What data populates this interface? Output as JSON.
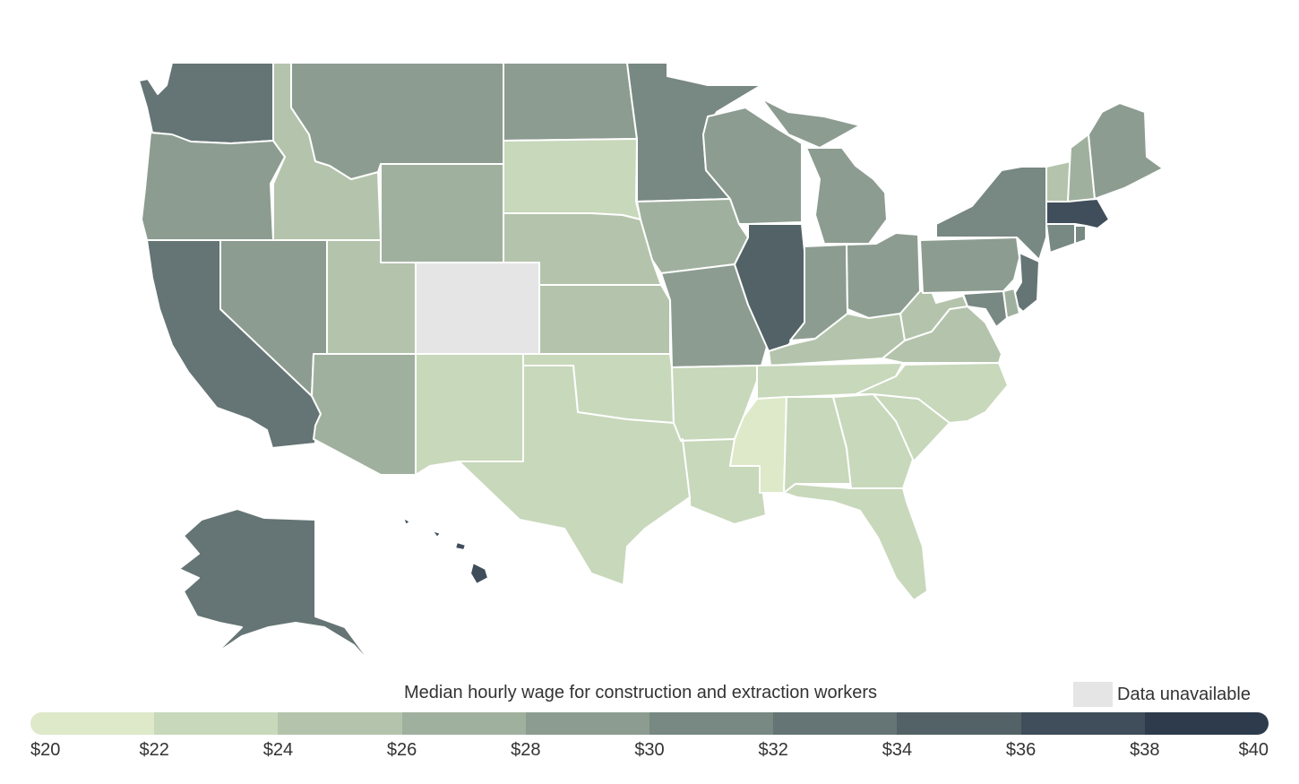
{
  "legend": {
    "title": "Median hourly wage for construction and extraction workers",
    "na_label": "Data unavailable",
    "na_color": "#e5e5e5",
    "colors": [
      "#dde9c8",
      "#c8d8bb",
      "#b4c4ac",
      "#a0b09e",
      "#8c9c90",
      "#788882",
      "#657474",
      "#536266",
      "#3f4e5a",
      "#2d3b4c"
    ],
    "ticks": [
      "$20",
      "$22",
      "$24",
      "$26",
      "$28",
      "$30",
      "$32",
      "$34",
      "$36",
      "$38",
      "$40"
    ]
  },
  "chart_data": {
    "type": "choropleth",
    "legend_placement": "bottom",
    "scale": {
      "min": 20,
      "max": 40,
      "step": 2
    },
    "bins": {
      "WA": 6,
      "OR": 4,
      "CA": 6,
      "NV": 4,
      "ID": 2,
      "MT": 4,
      "WY": 3,
      "UT": 2,
      "CO": -1,
      "AZ": 3,
      "NM": 1,
      "ND": 4,
      "SD": 1,
      "NE": 2,
      "KS": 2,
      "OK": 1,
      "TX": 1,
      "MN": 5,
      "IA": 3,
      "MO": 4,
      "AR": 1,
      "LA": 1,
      "WI": 4,
      "IL": 7,
      "MI": 4,
      "IN": 4,
      "OH": 4,
      "KY": 2,
      "TN": 1,
      "MS": 0,
      "AL": 1,
      "GA": 1,
      "FL": 1,
      "SC": 1,
      "NC": 1,
      "VA": 2,
      "WV": 2,
      "PA": 4,
      "NY": 5,
      "NJ": 6,
      "DE": 3,
      "MD": 5,
      "CT": 5,
      "RI": 5,
      "MA": 8,
      "VT": 2,
      "NH": 3,
      "ME": 4,
      "AK": 6,
      "HI": 8
    }
  }
}
